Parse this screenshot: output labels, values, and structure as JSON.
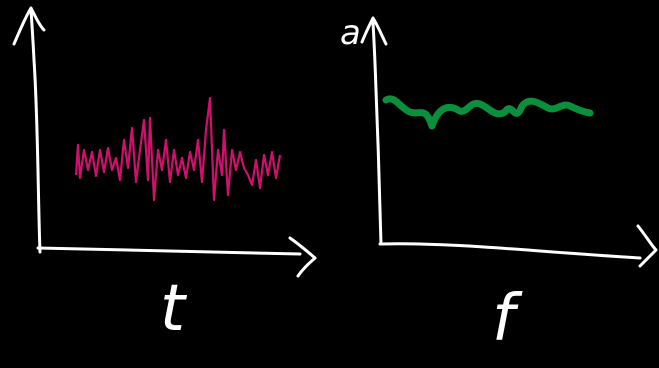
{
  "diagram": {
    "left_plot": {
      "x_label": "t"
    },
    "right_plot": {
      "y_label": "a",
      "x_label": "f"
    }
  }
}
